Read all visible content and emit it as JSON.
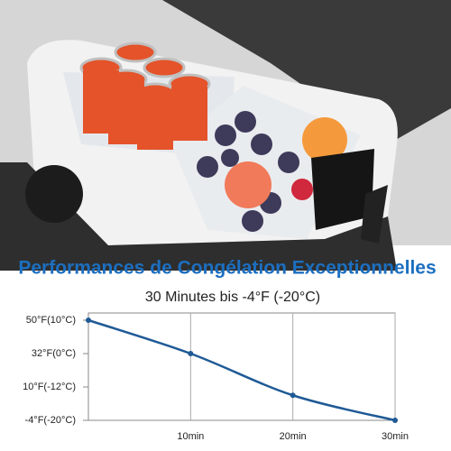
{
  "chart_data": {
    "type": "line",
    "title": "Performances de Congélation Exceptionnelles",
    "subtitle": "30 Minutes bis -4°F (-20°C)",
    "x": [
      0,
      10,
      20,
      30
    ],
    "xlim": [
      0,
      30
    ],
    "xticks": [
      {
        "value": 10,
        "label": "10min"
      },
      {
        "value": 20,
        "label": "20min"
      },
      {
        "value": 30,
        "label": "30min"
      }
    ],
    "ylim": [
      -20,
      10
    ],
    "yticks": [
      {
        "value": 10,
        "label": "50°F(10°C)"
      },
      {
        "value": 0,
        "label": "32°F(0°C)"
      },
      {
        "value": -12,
        "label": "10°F(-12°C)"
      },
      {
        "value": -20,
        "label": "-4°F(-20°C)"
      }
    ],
    "grid": true,
    "series": [
      {
        "color": "#1f5a96",
        "values": [
          10,
          0,
          -14,
          -20
        ]
      }
    ]
  }
}
